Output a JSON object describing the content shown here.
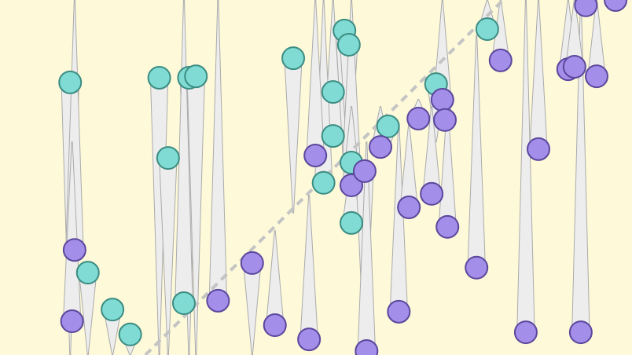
{
  "chart_data": {
    "type": "scatter",
    "title": "",
    "xlabel": "",
    "ylabel": "",
    "xlim": [
      0,
      100
    ],
    "ylim": [
      0,
      100
    ],
    "grid": false,
    "background": "#fdf9d9",
    "reference_line": {
      "style": "dashed",
      "color": "#c4c4c4",
      "x": [
        23.0,
        79.6
      ],
      "y": [
        0,
        100
      ]
    },
    "series": [
      {
        "color": "#7fdbd3",
        "stroke": "#3c8c82",
        "points": [
          {
            "x": 11.1,
            "y": 76.8,
            "tail": 0
          },
          {
            "x": 25.2,
            "y": 78.1,
            "tail": 0
          },
          {
            "x": 26.6,
            "y": 55.5,
            "tail": 0
          },
          {
            "x": 29.9,
            "y": 78.1,
            "tail": 0
          },
          {
            "x": 31.0,
            "y": 78.5,
            "tail": 0
          },
          {
            "x": 46.4,
            "y": 83.6,
            "tail": 40
          },
          {
            "x": 54.5,
            "y": 91.4,
            "tail": 50
          },
          {
            "x": 55.2,
            "y": 87.4,
            "tail": 50
          },
          {
            "x": 52.7,
            "y": 74.1,
            "tail": 60
          },
          {
            "x": 52.7,
            "y": 61.7,
            "tail": 100
          },
          {
            "x": 61.4,
            "y": 64.4,
            "tail": 58
          },
          {
            "x": 69.0,
            "y": 76.3,
            "tail": 60
          },
          {
            "x": 77.1,
            "y": 91.8,
            "tail": 100
          },
          {
            "x": 13.9,
            "y": 23.2,
            "tail": 0
          },
          {
            "x": 17.8,
            "y": 12.8,
            "tail": 0
          },
          {
            "x": 20.6,
            "y": 5.8,
            "tail": 0
          },
          {
            "x": 29.1,
            "y": 14.6,
            "tail": 100
          },
          {
            "x": 51.2,
            "y": 48.5,
            "tail": 100
          },
          {
            "x": 55.6,
            "y": 54.2,
            "tail": 100
          },
          {
            "x": 55.6,
            "y": 37.2,
            "tail": 55
          }
        ]
      },
      {
        "color": "#a38ee9",
        "stroke": "#5b479c",
        "points": [
          {
            "x": 11.8,
            "y": 29.6,
            "tail": 100
          },
          {
            "x": 11.4,
            "y": 9.5,
            "tail": 60
          },
          {
            "x": 34.5,
            "y": 15.3,
            "tail": 100
          },
          {
            "x": 39.9,
            "y": 25.9,
            "tail": 0
          },
          {
            "x": 43.5,
            "y": 8.4,
            "tail": 35
          },
          {
            "x": 48.9,
            "y": 4.4,
            "tail": 45
          },
          {
            "x": 49.9,
            "y": 56.2,
            "tail": 100
          },
          {
            "x": 55.6,
            "y": 47.8,
            "tail": 70
          },
          {
            "x": 57.7,
            "y": 51.8,
            "tail": 0
          },
          {
            "x": 58.0,
            "y": 1.1,
            "tail": 60
          },
          {
            "x": 60.2,
            "y": 58.6,
            "tail": 70
          },
          {
            "x": 63.1,
            "y": 12.2,
            "tail": 65
          },
          {
            "x": 64.7,
            "y": 41.6,
            "tail": 65
          },
          {
            "x": 66.2,
            "y": 66.6,
            "tail": 72
          },
          {
            "x": 68.3,
            "y": 45.4,
            "tail": 70
          },
          {
            "x": 70.0,
            "y": 71.9,
            "tail": 100
          },
          {
            "x": 70.4,
            "y": 66.2,
            "tail": 75
          },
          {
            "x": 70.8,
            "y": 36.1,
            "tail": 70
          },
          {
            "x": 75.4,
            "y": 24.6,
            "tail": 90
          },
          {
            "x": 79.2,
            "y": 83.0,
            "tail": 100
          },
          {
            "x": 85.2,
            "y": 58.0,
            "tail": 100
          },
          {
            "x": 83.2,
            "y": 6.4,
            "tail": 100
          },
          {
            "x": 91.9,
            "y": 6.4,
            "tail": 100
          },
          {
            "x": 89.9,
            "y": 80.5,
            "tail": 100
          },
          {
            "x": 90.9,
            "y": 81.2,
            "tail": 100
          },
          {
            "x": 94.4,
            "y": 78.5,
            "tail": 100
          },
          {
            "x": 92.7,
            "y": 98.5,
            "tail": 100
          },
          {
            "x": 97.4,
            "y": 100,
            "tail": 100
          }
        ]
      }
    ]
  }
}
